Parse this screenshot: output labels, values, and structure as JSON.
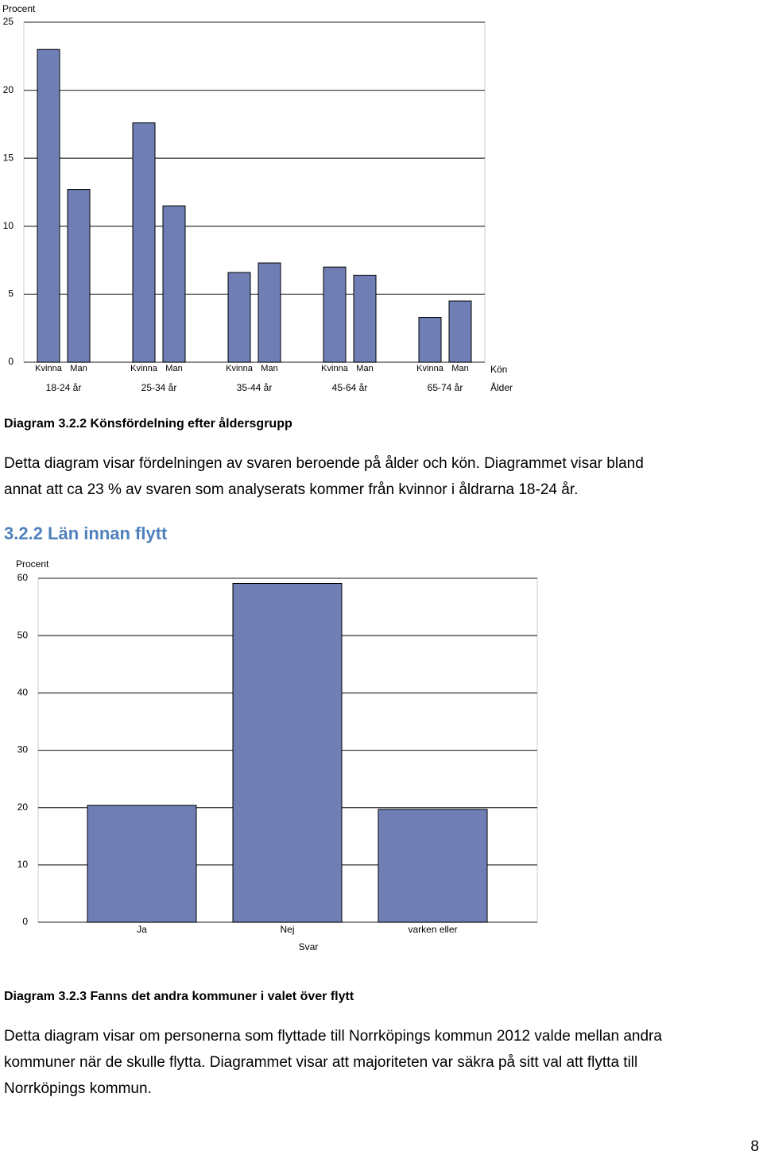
{
  "chart_data": [
    {
      "type": "bar",
      "y_label": "Procent",
      "x_label": "Kön",
      "x_group_label": "Ålder",
      "categories": [
        "18-24 år",
        "25-34 år",
        "35-44 år",
        "45-64 år",
        "65-74 år"
      ],
      "series": [
        {
          "name": "Kvinna",
          "color": "#6f7fb6",
          "values": [
            23.0,
            17.6,
            6.6,
            7.0,
            3.3
          ]
        },
        {
          "name": "Man",
          "color": "#6f7fb6",
          "values": [
            12.7,
            11.5,
            7.3,
            6.4,
            4.5
          ]
        }
      ],
      "ylim": [
        0,
        25
      ],
      "yticks": [
        0,
        5,
        10,
        15,
        20,
        25
      ],
      "grid": true
    },
    {
      "type": "bar",
      "y_label": "Procent",
      "x_label": "Svar",
      "categories": [
        "Ja",
        "Nej",
        "varken eller"
      ],
      "values": [
        20.4,
        59.1,
        19.7
      ],
      "color": "#6f7fb6",
      "ylim": [
        0,
        60
      ],
      "yticks": [
        0,
        10,
        20,
        30,
        40,
        50,
        60
      ],
      "grid": true
    }
  ],
  "document": {
    "caption_1": "Diagram 3.2.2 Könsfördelning efter åldersgrupp",
    "paragraph_1": [
      "Detta diagram visar fördelningen av svaren beroende på ålder och kön. Diagrammet visar bland",
      "annat att ca 23 % av svaren som analyserats kommer från kvinnor i åldrarna 18-24 år."
    ],
    "heading": "3.2.2 Län innan flytt",
    "caption_2": "Diagram 3.2.3 Fanns det andra kommuner i valet över flytt",
    "paragraph_2": [
      "Detta diagram visar om personerna som flyttade till Norrköpings kommun 2012 valde mellan andra",
      "kommuner när de skulle flytta. Diagrammet visar att majoriteten var säkra på sitt val att flytta till",
      "Norrköpings kommun."
    ],
    "page_number": "8"
  }
}
